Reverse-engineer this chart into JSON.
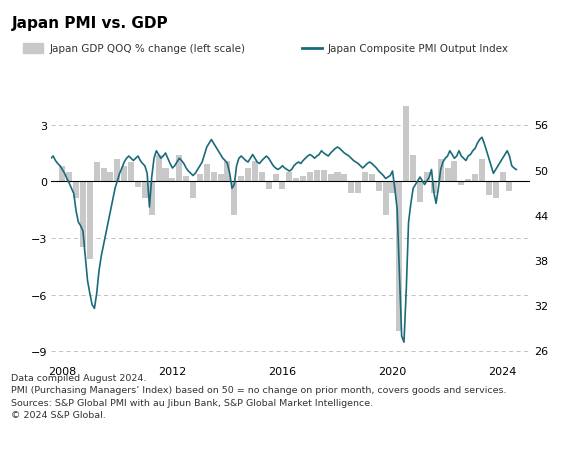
{
  "title": "Japan PMI vs. GDP",
  "legend_gdp": "Japan GDP QOQ % change (left scale)",
  "legend_pmi": "Japan Composite PMI Output Index",
  "left_ylim": [
    -9.5,
    4.0
  ],
  "left_yticks": [
    -9.0,
    -6.0,
    -3.0,
    0.0,
    3.0
  ],
  "right_ylim": [
    24.5,
    58.5
  ],
  "right_yticks": [
    26,
    32,
    38,
    44,
    50,
    56
  ],
  "xlim_start": 2007.6,
  "xlim_end": 2025.0,
  "xticks": [
    2008,
    2012,
    2016,
    2020,
    2024
  ],
  "bar_color": "#c8c8c8",
  "line_color": "#1a6b7a",
  "zero_line_color": "#000000",
  "grid_color": "#b0b0b0",
  "background_color": "#ffffff",
  "footnote_lines": [
    "Data compiled August 2024.",
    "PMI (Purchasing Managers’ Index) based on 50 = no change on prior month, covers goods and services.",
    "Sources: S&P Global PMI with au Jibun Bank, S&P Global Market Intelligence.",
    "© 2024 S&P Global."
  ],
  "gdp_dates": [
    2008.0,
    2008.25,
    2008.5,
    2008.75,
    2009.0,
    2009.25,
    2009.5,
    2009.75,
    2010.0,
    2010.25,
    2010.5,
    2010.75,
    2011.0,
    2011.25,
    2011.5,
    2011.75,
    2012.0,
    2012.25,
    2012.5,
    2012.75,
    2013.0,
    2013.25,
    2013.5,
    2013.75,
    2014.0,
    2014.25,
    2014.5,
    2014.75,
    2015.0,
    2015.25,
    2015.5,
    2015.75,
    2016.0,
    2016.25,
    2016.5,
    2016.75,
    2017.0,
    2017.25,
    2017.5,
    2017.75,
    2018.0,
    2018.25,
    2018.5,
    2018.75,
    2019.0,
    2019.25,
    2019.5,
    2019.75,
    2020.0,
    2020.25,
    2020.5,
    2020.75,
    2021.0,
    2021.25,
    2021.5,
    2021.75,
    2022.0,
    2022.25,
    2022.5,
    2022.75,
    2023.0,
    2023.25,
    2023.5,
    2023.75,
    2024.0,
    2024.25
  ],
  "gdp_values": [
    0.8,
    0.5,
    -0.9,
    -3.5,
    -4.1,
    1.0,
    0.7,
    0.5,
    1.2,
    0.8,
    1.0,
    -0.3,
    -0.9,
    -1.8,
    1.4,
    0.7,
    0.2,
    1.4,
    0.3,
    -0.9,
    0.4,
    0.9,
    0.5,
    0.4,
    1.1,
    -1.8,
    0.3,
    0.7,
    1.1,
    0.5,
    -0.4,
    0.4,
    -0.4,
    0.5,
    0.2,
    0.3,
    0.5,
    0.6,
    0.6,
    0.4,
    0.5,
    0.4,
    -0.6,
    -0.6,
    0.5,
    0.4,
    -0.5,
    -1.8,
    -0.6,
    -7.9,
    5.3,
    1.4,
    -1.1,
    0.5,
    -0.6,
    1.2,
    0.7,
    1.1,
    -0.2,
    0.1,
    0.4,
    1.2,
    -0.7,
    -0.9,
    0.5,
    -0.5
  ],
  "pmi_dates": [
    2007.583,
    2007.667,
    2007.75,
    2007.833,
    2007.917,
    2008.0,
    2008.083,
    2008.167,
    2008.25,
    2008.333,
    2008.417,
    2008.5,
    2008.583,
    2008.667,
    2008.75,
    2008.833,
    2008.917,
    2009.0,
    2009.083,
    2009.167,
    2009.25,
    2009.333,
    2009.417,
    2009.5,
    2009.583,
    2009.667,
    2009.75,
    2009.833,
    2009.917,
    2010.0,
    2010.083,
    2010.167,
    2010.25,
    2010.333,
    2010.417,
    2010.5,
    2010.583,
    2010.667,
    2010.75,
    2010.833,
    2010.917,
    2011.0,
    2011.083,
    2011.167,
    2011.25,
    2011.333,
    2011.417,
    2011.5,
    2011.583,
    2011.667,
    2011.75,
    2011.833,
    2011.917,
    2012.0,
    2012.083,
    2012.167,
    2012.25,
    2012.333,
    2012.417,
    2012.5,
    2012.583,
    2012.667,
    2012.75,
    2012.833,
    2012.917,
    2013.0,
    2013.083,
    2013.167,
    2013.25,
    2013.333,
    2013.417,
    2013.5,
    2013.583,
    2013.667,
    2013.75,
    2013.833,
    2013.917,
    2014.0,
    2014.083,
    2014.167,
    2014.25,
    2014.333,
    2014.417,
    2014.5,
    2014.583,
    2014.667,
    2014.75,
    2014.833,
    2014.917,
    2015.0,
    2015.083,
    2015.167,
    2015.25,
    2015.333,
    2015.417,
    2015.5,
    2015.583,
    2015.667,
    2015.75,
    2015.833,
    2015.917,
    2016.0,
    2016.083,
    2016.167,
    2016.25,
    2016.333,
    2016.417,
    2016.5,
    2016.583,
    2016.667,
    2016.75,
    2016.833,
    2016.917,
    2017.0,
    2017.083,
    2017.167,
    2017.25,
    2017.333,
    2017.417,
    2017.5,
    2017.583,
    2017.667,
    2017.75,
    2017.833,
    2017.917,
    2018.0,
    2018.083,
    2018.167,
    2018.25,
    2018.333,
    2018.417,
    2018.5,
    2018.583,
    2018.667,
    2018.75,
    2018.833,
    2018.917,
    2019.0,
    2019.083,
    2019.167,
    2019.25,
    2019.333,
    2019.417,
    2019.5,
    2019.583,
    2019.667,
    2019.75,
    2019.833,
    2019.917,
    2020.0,
    2020.083,
    2020.167,
    2020.25,
    2020.333,
    2020.417,
    2020.5,
    2020.583,
    2020.667,
    2020.75,
    2020.833,
    2020.917,
    2021.0,
    2021.083,
    2021.167,
    2021.25,
    2021.333,
    2021.417,
    2021.5,
    2021.583,
    2021.667,
    2021.75,
    2021.833,
    2021.917,
    2022.0,
    2022.083,
    2022.167,
    2022.25,
    2022.333,
    2022.417,
    2022.5,
    2022.583,
    2022.667,
    2022.75,
    2022.833,
    2022.917,
    2023.0,
    2023.083,
    2023.167,
    2023.25,
    2023.333,
    2023.417,
    2023.5,
    2023.583,
    2023.667,
    2023.75,
    2023.833,
    2023.917,
    2024.0,
    2024.083,
    2024.167,
    2024.25,
    2024.333,
    2024.417,
    2024.5
  ],
  "pmi_values": [
    51.5,
    51.8,
    51.2,
    50.8,
    50.5,
    50.0,
    49.5,
    48.8,
    48.2,
    47.5,
    46.8,
    44.5,
    43.0,
    42.5,
    41.8,
    38.5,
    35.2,
    33.5,
    32.0,
    31.5,
    33.5,
    36.5,
    38.5,
    40.0,
    41.5,
    43.0,
    44.5,
    46.0,
    47.5,
    48.5,
    49.5,
    50.2,
    51.0,
    51.5,
    51.8,
    51.5,
    51.2,
    51.5,
    51.8,
    51.2,
    50.8,
    50.5,
    49.5,
    45.0,
    49.0,
    51.5,
    52.5,
    52.0,
    51.5,
    51.8,
    52.2,
    51.5,
    50.8,
    50.2,
    50.5,
    51.0,
    51.5,
    51.2,
    50.8,
    50.2,
    49.8,
    49.5,
    49.2,
    49.5,
    50.0,
    50.5,
    51.0,
    52.0,
    53.0,
    53.5,
    54.0,
    53.5,
    53.0,
    52.5,
    52.0,
    51.5,
    51.2,
    50.8,
    49.5,
    47.5,
    48.0,
    50.5,
    51.5,
    51.8,
    51.5,
    51.2,
    51.0,
    51.5,
    52.0,
    51.5,
    51.0,
    50.8,
    51.2,
    51.5,
    51.8,
    51.5,
    51.0,
    50.5,
    50.2,
    50.0,
    50.2,
    50.5,
    50.2,
    50.0,
    49.8,
    50.0,
    50.5,
    50.8,
    51.0,
    50.8,
    51.2,
    51.5,
    51.8,
    52.0,
    51.8,
    51.5,
    51.8,
    52.0,
    52.5,
    52.2,
    52.0,
    51.8,
    52.2,
    52.5,
    52.8,
    53.0,
    52.8,
    52.5,
    52.2,
    52.0,
    51.8,
    51.5,
    51.2,
    51.0,
    50.8,
    50.5,
    50.2,
    50.5,
    50.8,
    51.0,
    50.8,
    50.5,
    50.2,
    49.8,
    49.5,
    49.2,
    48.8,
    49.0,
    49.2,
    49.8,
    47.5,
    44.8,
    36.5,
    27.8,
    27.0,
    34.0,
    43.0,
    45.5,
    47.5,
    48.0,
    48.5,
    49.0,
    48.5,
    48.0,
    48.5,
    49.0,
    50.0,
    47.0,
    45.5,
    47.5,
    50.0,
    51.0,
    51.5,
    51.8,
    52.5,
    52.0,
    51.5,
    51.8,
    52.5,
    51.8,
    51.5,
    51.2,
    51.8,
    52.0,
    52.5,
    52.8,
    53.5,
    54.0,
    54.3,
    53.5,
    52.5,
    51.5,
    50.5,
    49.5,
    50.0,
    50.5,
    51.0,
    51.5,
    52.0,
    52.5,
    51.8,
    50.5,
    50.2,
    50.0
  ]
}
